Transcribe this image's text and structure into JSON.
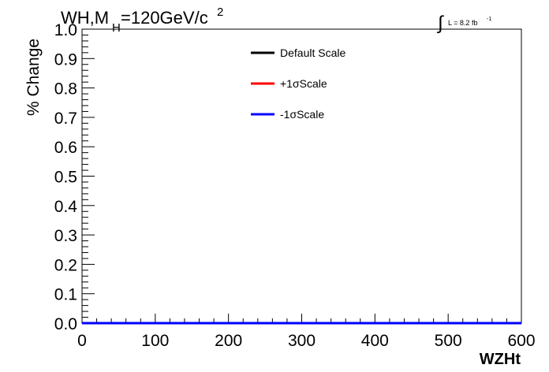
{
  "chart_data": {
    "type": "line",
    "title_main": "WH,M",
    "title_sub": "H",
    "title_rest": "=120GeV/c",
    "title_sup": "2",
    "lumi_text": "L = 8.2 fb",
    "lumi_sup": "-1",
    "xlabel": "WZHt",
    "ylabel": "% Change",
    "xlim": [
      0,
      600
    ],
    "ylim": [
      0,
      1
    ],
    "x_ticks": [
      "0",
      "100",
      "200",
      "300",
      "400",
      "500",
      "600"
    ],
    "y_ticks": [
      "0.0",
      "0.1",
      "0.2",
      "0.3",
      "0.4",
      "0.5",
      "0.6",
      "0.7",
      "0.8",
      "0.9",
      "1.0"
    ],
    "legend_position": "top-center",
    "series": [
      {
        "name": "Default Scale",
        "color": "#000000",
        "x": [
          0,
          600
        ],
        "y": [
          0,
          0
        ]
      },
      {
        "name": "+1σScale",
        "color": "#ff0000",
        "x": [
          0,
          600
        ],
        "y": [
          0,
          0
        ]
      },
      {
        "name": "-1σScale",
        "color": "#0000ff",
        "x": [
          0,
          600
        ],
        "y": [
          0,
          0
        ]
      }
    ]
  }
}
